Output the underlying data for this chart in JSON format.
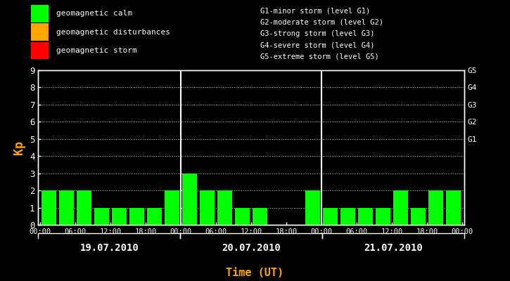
{
  "background_color": "#000000",
  "plot_bg_color": "#000000",
  "bar_color": "#00ff00",
  "text_color": "#ffffff",
  "orange_color": "#ffa500",
  "xlabel": "Time (UT)",
  "ylabel": "Kp",
  "ylim": [
    0,
    9
  ],
  "right_labels": [
    "G5",
    "G4",
    "G3",
    "G2",
    "G1"
  ],
  "right_label_yvals": [
    9,
    8,
    7,
    6,
    5
  ],
  "days": [
    "19.07.2010",
    "20.07.2010",
    "21.07.2010"
  ],
  "kp_values": [
    [
      2,
      2,
      2,
      1,
      1,
      1,
      1,
      2
    ],
    [
      3,
      2,
      2,
      1,
      1,
      0,
      0,
      2
    ],
    [
      1,
      1,
      1,
      1,
      2,
      1,
      2,
      2
    ]
  ],
  "legend_items": [
    {
      "label": "geomagnetic calm",
      "color": "#00ff00"
    },
    {
      "label": "geomagnetic disturbances",
      "color": "#ffa500"
    },
    {
      "label": "geomagnetic storm",
      "color": "#ff0000"
    }
  ],
  "right_legend_lines": [
    "G1-minor storm (level G1)",
    "G2-moderate storm (level G2)",
    "G3-strong storm (level G3)",
    "G4-severe storm (level G4)",
    "G5-extreme storm (level G5)"
  ],
  "xtick_labels": [
    "00:00",
    "06:00",
    "12:00",
    "18:00",
    "00:00",
    "06:00",
    "12:00",
    "18:00",
    "00:00",
    "06:00",
    "12:00",
    "18:00",
    "00:00"
  ],
  "bar_width": 0.85
}
